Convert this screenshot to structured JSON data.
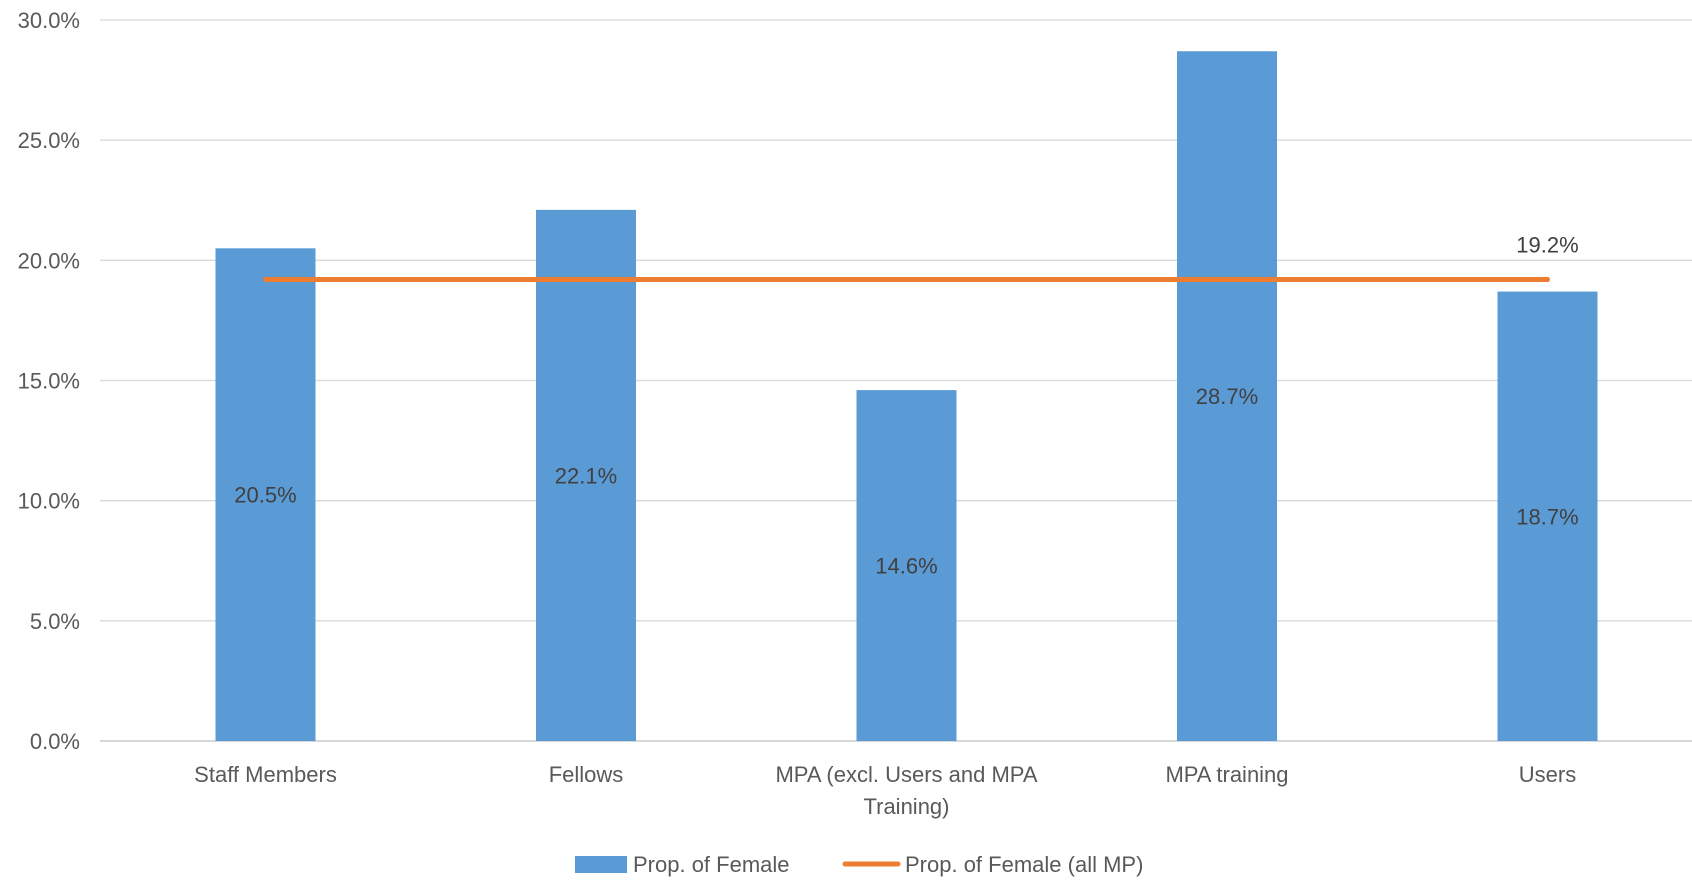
{
  "chart_data": {
    "type": "bar",
    "categories": [
      [
        "Staff Members"
      ],
      [
        "Fellows"
      ],
      [
        "MPA (excl. Users and MPA",
        "Training)"
      ],
      [
        "MPA training"
      ],
      [
        "Users"
      ]
    ],
    "series": [
      {
        "name": "Prop. of Female",
        "kind": "bar",
        "color": "#5B9BD5",
        "values": [
          20.5,
          22.1,
          14.6,
          28.7,
          18.7
        ],
        "labels": [
          "20.5%",
          "22.1%",
          "14.6%",
          "28.7%",
          "18.7%"
        ]
      },
      {
        "name": "Prop. of Female (all MP)",
        "kind": "line",
        "color": "#ED7D31",
        "values": [
          19.2,
          19.2,
          19.2,
          19.2,
          19.2
        ],
        "end_label": "19.2%"
      }
    ],
    "y_ticks": [
      "0.0%",
      "5.0%",
      "10.0%",
      "15.0%",
      "20.0%",
      "25.0%",
      "30.0%"
    ],
    "ylim": [
      0,
      30
    ],
    "grid": true,
    "gridline_color": "#D9D9D9",
    "legend_position": "bottom"
  }
}
